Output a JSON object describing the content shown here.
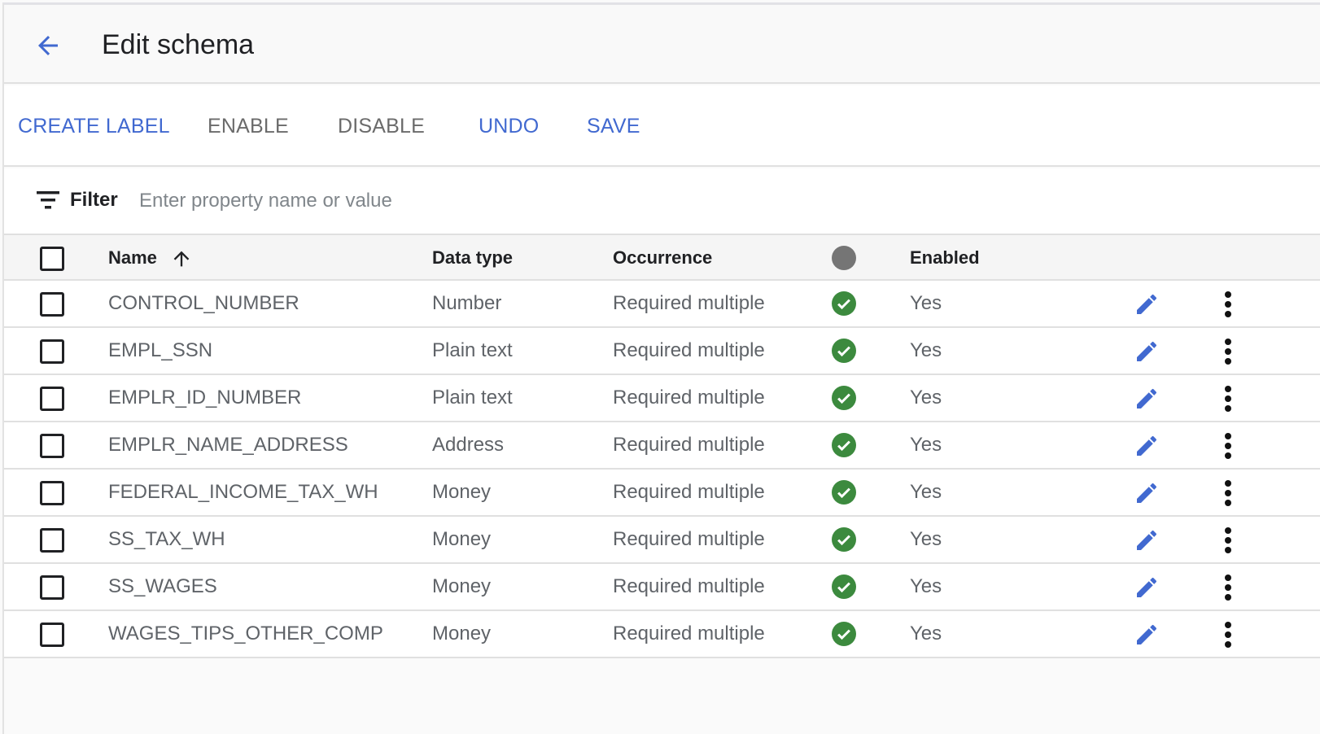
{
  "header": {
    "title": "Edit schema",
    "back_icon": "arrow-left-icon"
  },
  "toolbar": {
    "create_label": "CREATE LABEL",
    "enable": "ENABLE",
    "disable": "DISABLE",
    "undo": "UNDO",
    "save": "SAVE"
  },
  "filter": {
    "label": "Filter",
    "placeholder": "Enter property name or value",
    "value": ""
  },
  "colors": {
    "accent": "#4169d0",
    "enabled_check": "#3c8a3e",
    "disabled_text": "#6b6b6b"
  },
  "table": {
    "columns": {
      "name": "Name",
      "data_type": "Data type",
      "occurrence": "Occurrence",
      "enabled": "Enabled"
    },
    "sort": {
      "column": "Name",
      "direction": "ascending"
    },
    "rows": [
      {
        "name": "CONTROL_NUMBER",
        "data_type": "Number",
        "occurrence": "Required multiple",
        "enabled": "Yes"
      },
      {
        "name": "EMPL_SSN",
        "data_type": "Plain text",
        "occurrence": "Required multiple",
        "enabled": "Yes"
      },
      {
        "name": "EMPLR_ID_NUMBER",
        "data_type": "Plain text",
        "occurrence": "Required multiple",
        "enabled": "Yes"
      },
      {
        "name": "EMPLR_NAME_ADDRESS",
        "data_type": "Address",
        "occurrence": "Required multiple",
        "enabled": "Yes"
      },
      {
        "name": "FEDERAL_INCOME_TAX_WH",
        "data_type": "Money",
        "occurrence": "Required multiple",
        "enabled": "Yes"
      },
      {
        "name": "SS_TAX_WH",
        "data_type": "Money",
        "occurrence": "Required multiple",
        "enabled": "Yes"
      },
      {
        "name": "SS_WAGES",
        "data_type": "Money",
        "occurrence": "Required multiple",
        "enabled": "Yes"
      },
      {
        "name": "WAGES_TIPS_OTHER_COMP",
        "data_type": "Money",
        "occurrence": "Required multiple",
        "enabled": "Yes"
      }
    ]
  }
}
